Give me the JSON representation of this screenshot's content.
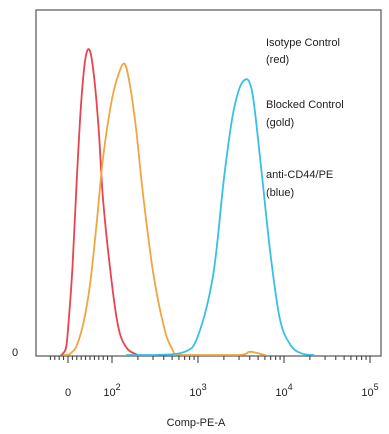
{
  "chart_data": {
    "type": "line",
    "xlabel": "Comp-PE-A",
    "ylabel": "",
    "x_scale": "biexponential",
    "xlim": [
      -40,
      200000
    ],
    "ylim": [
      0,
      100
    ],
    "y_ticks": [
      {
        "value": 0,
        "label": "0"
      }
    ],
    "x_ticks": [
      {
        "value": 0,
        "base": "0",
        "exp": ""
      },
      {
        "value": 100,
        "base": "10",
        "exp": "2"
      },
      {
        "value": 1000,
        "base": "10",
        "exp": "3"
      },
      {
        "value": 10000,
        "base": "10",
        "exp": "4"
      },
      {
        "value": 100000,
        "base": "10",
        "exp": "5"
      }
    ],
    "grid": false,
    "legend_position": "top-right",
    "series": [
      {
        "name": "Isotype Control (red)",
        "legend_lines": [
          "Isotype Control",
          "(red)"
        ],
        "color": "#e8434f",
        "x": [
          -15,
          -5,
          0,
          10,
          20,
          30,
          40,
          50,
          60,
          70,
          80,
          100,
          120,
          150,
          200
        ],
        "y": [
          0,
          2,
          8,
          27,
          55,
          79,
          93,
          95,
          86,
          70,
          48,
          22,
          8,
          2,
          0
        ]
      },
      {
        "name": "Blocked Control (gold)",
        "legend_lines": [
          "Blocked Control",
          "(gold)"
        ],
        "color": "#f0a640",
        "x": [
          -10,
          0,
          10,
          20,
          35,
          50,
          65,
          80,
          100,
          120,
          140,
          160,
          190,
          230,
          300,
          400,
          500,
          650,
          3000,
          4000,
          6000
        ],
        "y": [
          0,
          0,
          1,
          3,
          10,
          22,
          41,
          62,
          80,
          88,
          91,
          85,
          71,
          50,
          26,
          9,
          2,
          0,
          0,
          1,
          0
        ]
      },
      {
        "name": "anti-CD44/PE (blue)",
        "legend_lines": [
          "anti-CD44/PE",
          "(blue)"
        ],
        "color": "#35c1e6",
        "x": [
          150,
          300,
          700,
          1000,
          1500,
          2000,
          2500,
          3000,
          3500,
          4000,
          4500,
          5500,
          7000,
          9000,
          12000,
          16000,
          22000
        ],
        "y": [
          0,
          0,
          1,
          6,
          25,
          55,
          74,
          83,
          86,
          85,
          78,
          57,
          31,
          11,
          3,
          0.5,
          0
        ]
      }
    ]
  }
}
